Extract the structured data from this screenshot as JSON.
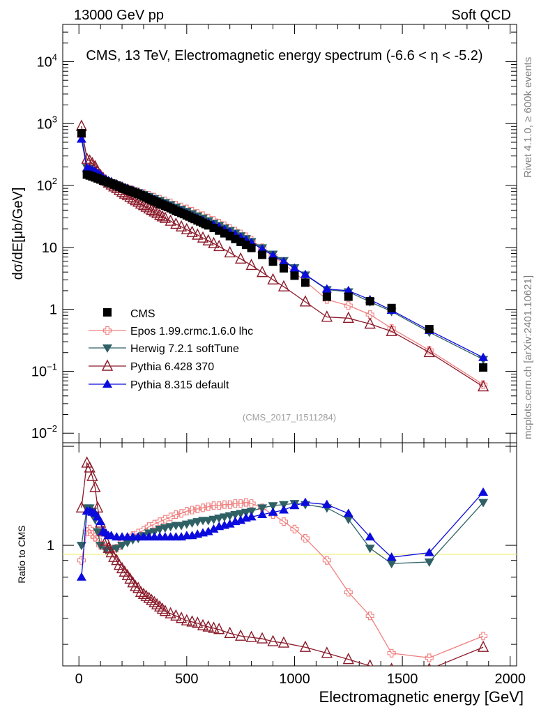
{
  "header": {
    "left": "13000 GeV pp",
    "right": "Soft QCD"
  },
  "side_text": {
    "rivet": "Rivet 4.1.0, ≥ 600k events",
    "mcplots": "mcplots.cern.ch [arXiv:2401.10621]"
  },
  "chart_data": {
    "type": "line",
    "title": "CMS, 13 TeV, Electromagnetic energy spectrum (-6.6 < η < -5.2)",
    "watermark": "(CMS_2017_I1511284)",
    "xlabel": "Electromagnetic energy [GeV]",
    "ylabel": "dσ/dE[μb/GeV]",
    "ratio_ylabel": "Ratio to CMS",
    "xlim": [
      -75,
      2030
    ],
    "ylim": [
      0.007,
      40000
    ],
    "yscale": "log",
    "ratio_ylim": [
      0.43,
      2.05
    ],
    "x_ticks": [
      0,
      500,
      1000,
      1500,
      2000
    ],
    "y_ticks": [
      {
        "value": 0.01,
        "base": "10",
        "exp": "−2"
      },
      {
        "value": 0.1,
        "base": "10",
        "exp": "−1"
      },
      {
        "value": 1,
        "base": "1",
        "exp": ""
      },
      {
        "value": 10,
        "base": "10",
        "exp": ""
      },
      {
        "value": 100,
        "base": "10",
        "exp": "2"
      },
      {
        "value": 1000,
        "base": "10",
        "exp": "3"
      },
      {
        "value": 10000,
        "base": "10",
        "exp": "4"
      }
    ],
    "ratio_ticks": [
      {
        "value": 1,
        "label": "1"
      }
    ],
    "cms": {
      "name": "CMS",
      "x": [
        12,
        37,
        50,
        62,
        75,
        87,
        100,
        112,
        125,
        137,
        150,
        162,
        175,
        187,
        200,
        212,
        225,
        237,
        250,
        262,
        275,
        287,
        300,
        312,
        325,
        337,
        350,
        362,
        375,
        387,
        400,
        412,
        425,
        437,
        450,
        462,
        475,
        487,
        500,
        512,
        525,
        537,
        550,
        562,
        575,
        587,
        600,
        625,
        650,
        675,
        700,
        725,
        750,
        775,
        800,
        850,
        900,
        950,
        1000,
        1050,
        1150,
        1250,
        1350,
        1450,
        1625,
        1875
      ],
      "values": [
        700,
        150,
        145,
        140,
        135,
        130,
        125,
        120,
        116,
        112,
        108,
        104,
        100,
        96,
        92,
        88,
        85,
        82,
        79,
        76,
        73,
        70,
        67,
        64,
        61,
        58.5,
        56,
        53.5,
        51,
        49,
        47,
        45,
        43,
        41,
        39,
        37.5,
        36,
        34.5,
        33,
        31.5,
        30,
        28.7,
        27.4,
        26.2,
        25,
        23.8,
        22.7,
        20.6,
        18.7,
        16.9,
        15.2,
        13.7,
        12.3,
        11,
        9.8,
        7.6,
        5.9,
        4.6,
        3.5,
        2.7,
        1.6,
        1.6,
        1.35,
        1.05,
        0.48,
        0.115
      ]
    },
    "series": [
      {
        "name": "Epos 1.99.crmc.1.6.0 lhc",
        "color": "#f08080",
        "marker": "cross",
        "x": [
          12,
          25,
          37,
          50,
          62,
          75,
          87,
          100,
          112,
          125,
          137,
          150,
          175,
          200,
          225,
          250,
          275,
          300,
          325,
          350,
          375,
          400,
          425,
          450,
          475,
          500,
          525,
          550,
          575,
          600,
          625,
          650,
          675,
          700,
          725,
          750,
          775,
          800,
          850,
          900,
          950,
          1000,
          1050,
          1150,
          1250,
          1350,
          1450,
          1625,
          1875
        ],
        "ratio": [
          0.9,
          1.0,
          1.1,
          1.12,
          1.08,
          1.06,
          1.04,
          1.0,
          1.0,
          0.98,
          0.97,
          0.97,
          0.98,
          1.02,
          1.05,
          1.07,
          1.09,
          1.11,
          1.14,
          1.16,
          1.18,
          1.2,
          1.22,
          1.24,
          1.25,
          1.27,
          1.28,
          1.29,
          1.3,
          1.31,
          1.32,
          1.32,
          1.33,
          1.33,
          1.34,
          1.34,
          1.35,
          1.34,
          1.3,
          1.24,
          1.18,
          1.12,
          1.05,
          0.9,
          0.72,
          0.61,
          0.47,
          0.455,
          0.53
        ]
      },
      {
        "name": "Herwig 7.2.1 softTune",
        "color": "#2e6064",
        "marker": "down-triangle",
        "x": [
          12,
          37,
          50,
          62,
          75,
          87,
          100,
          125,
          150,
          175,
          200,
          225,
          250,
          275,
          300,
          325,
          350,
          375,
          400,
          425,
          450,
          475,
          500,
          525,
          550,
          575,
          600,
          625,
          650,
          675,
          700,
          725,
          750,
          775,
          800,
          850,
          900,
          950,
          1000,
          1050,
          1150,
          1250,
          1350,
          1450,
          1625,
          1875
        ],
        "ratio": [
          1.0,
          1.3,
          1.3,
          1.27,
          1.2,
          1.1,
          1.0,
          0.97,
          0.97,
          0.98,
          1.0,
          1.02,
          1.04,
          1.05,
          1.07,
          1.09,
          1.1,
          1.12,
          1.13,
          1.14,
          1.15,
          1.15,
          1.16,
          1.17,
          1.18,
          1.19,
          1.19,
          1.2,
          1.21,
          1.22,
          1.23,
          1.24,
          1.25,
          1.26,
          1.27,
          1.3,
          1.32,
          1.33,
          1.34,
          1.33,
          1.3,
          1.2,
          0.98,
          0.88,
          0.89,
          1.35
        ]
      },
      {
        "name": "Pythia 6.428 370",
        "color": "#8b1a2a",
        "marker": "open-triangle",
        "x": [
          12,
          37,
          50,
          62,
          75,
          87,
          100,
          112,
          125,
          137,
          150,
          162,
          175,
          187,
          200,
          212,
          225,
          237,
          250,
          262,
          275,
          287,
          300,
          312,
          325,
          337,
          350,
          362,
          375,
          387,
          400,
          425,
          450,
          475,
          500,
          525,
          550,
          575,
          600,
          625,
          650,
          700,
          750,
          800,
          850,
          900,
          950,
          1050,
          1150,
          1250,
          1350,
          1450,
          1625,
          1875
        ],
        "ratio": [
          1.3,
          1.78,
          1.72,
          1.62,
          1.5,
          1.3,
          1.17,
          1.1,
          1.03,
          0.98,
          0.95,
          0.92,
          0.9,
          0.87,
          0.85,
          0.83,
          0.81,
          0.79,
          0.77,
          0.75,
          0.74,
          0.72,
          0.71,
          0.7,
          0.69,
          0.68,
          0.67,
          0.66,
          0.65,
          0.64,
          0.63,
          0.62,
          0.61,
          0.6,
          0.59,
          0.585,
          0.58,
          0.57,
          0.565,
          0.56,
          0.555,
          0.54,
          0.53,
          0.525,
          0.52,
          0.51,
          0.505,
          0.49,
          0.47,
          0.45,
          0.43,
          0.42,
          0.42,
          0.49
        ]
      },
      {
        "name": "Pythia 8.315 default",
        "color": "#0b0bde",
        "marker": "up-triangle",
        "x": [
          12,
          37,
          50,
          62,
          75,
          87,
          100,
          112,
          125,
          137,
          150,
          175,
          200,
          225,
          250,
          275,
          300,
          325,
          350,
          375,
          400,
          425,
          450,
          475,
          500,
          525,
          550,
          575,
          600,
          625,
          650,
          675,
          700,
          725,
          750,
          775,
          800,
          850,
          900,
          950,
          1000,
          1050,
          1150,
          1250,
          1350,
          1450,
          1625,
          1875
        ],
        "ratio": [
          0.8,
          1.27,
          1.27,
          1.26,
          1.25,
          1.22,
          1.18,
          1.1,
          1.09,
          1.07,
          1.07,
          1.06,
          1.06,
          1.06,
          1.06,
          1.06,
          1.06,
          1.06,
          1.06,
          1.06,
          1.06,
          1.06,
          1.06,
          1.06,
          1.07,
          1.07,
          1.08,
          1.09,
          1.1,
          1.12,
          1.14,
          1.15,
          1.16,
          1.18,
          1.19,
          1.21,
          1.22,
          1.24,
          1.26,
          1.28,
          1.32,
          1.35,
          1.33,
          1.25,
          1.06,
          0.92,
          0.95,
          1.45
        ]
      }
    ],
    "legend": [
      "CMS",
      "Epos 1.99.crmc.1.6.0 lhc",
      "Herwig 7.2.1 softTune",
      "Pythia 6.428 370",
      "Pythia 8.315 default"
    ],
    "legend_position": "bottom-left"
  }
}
